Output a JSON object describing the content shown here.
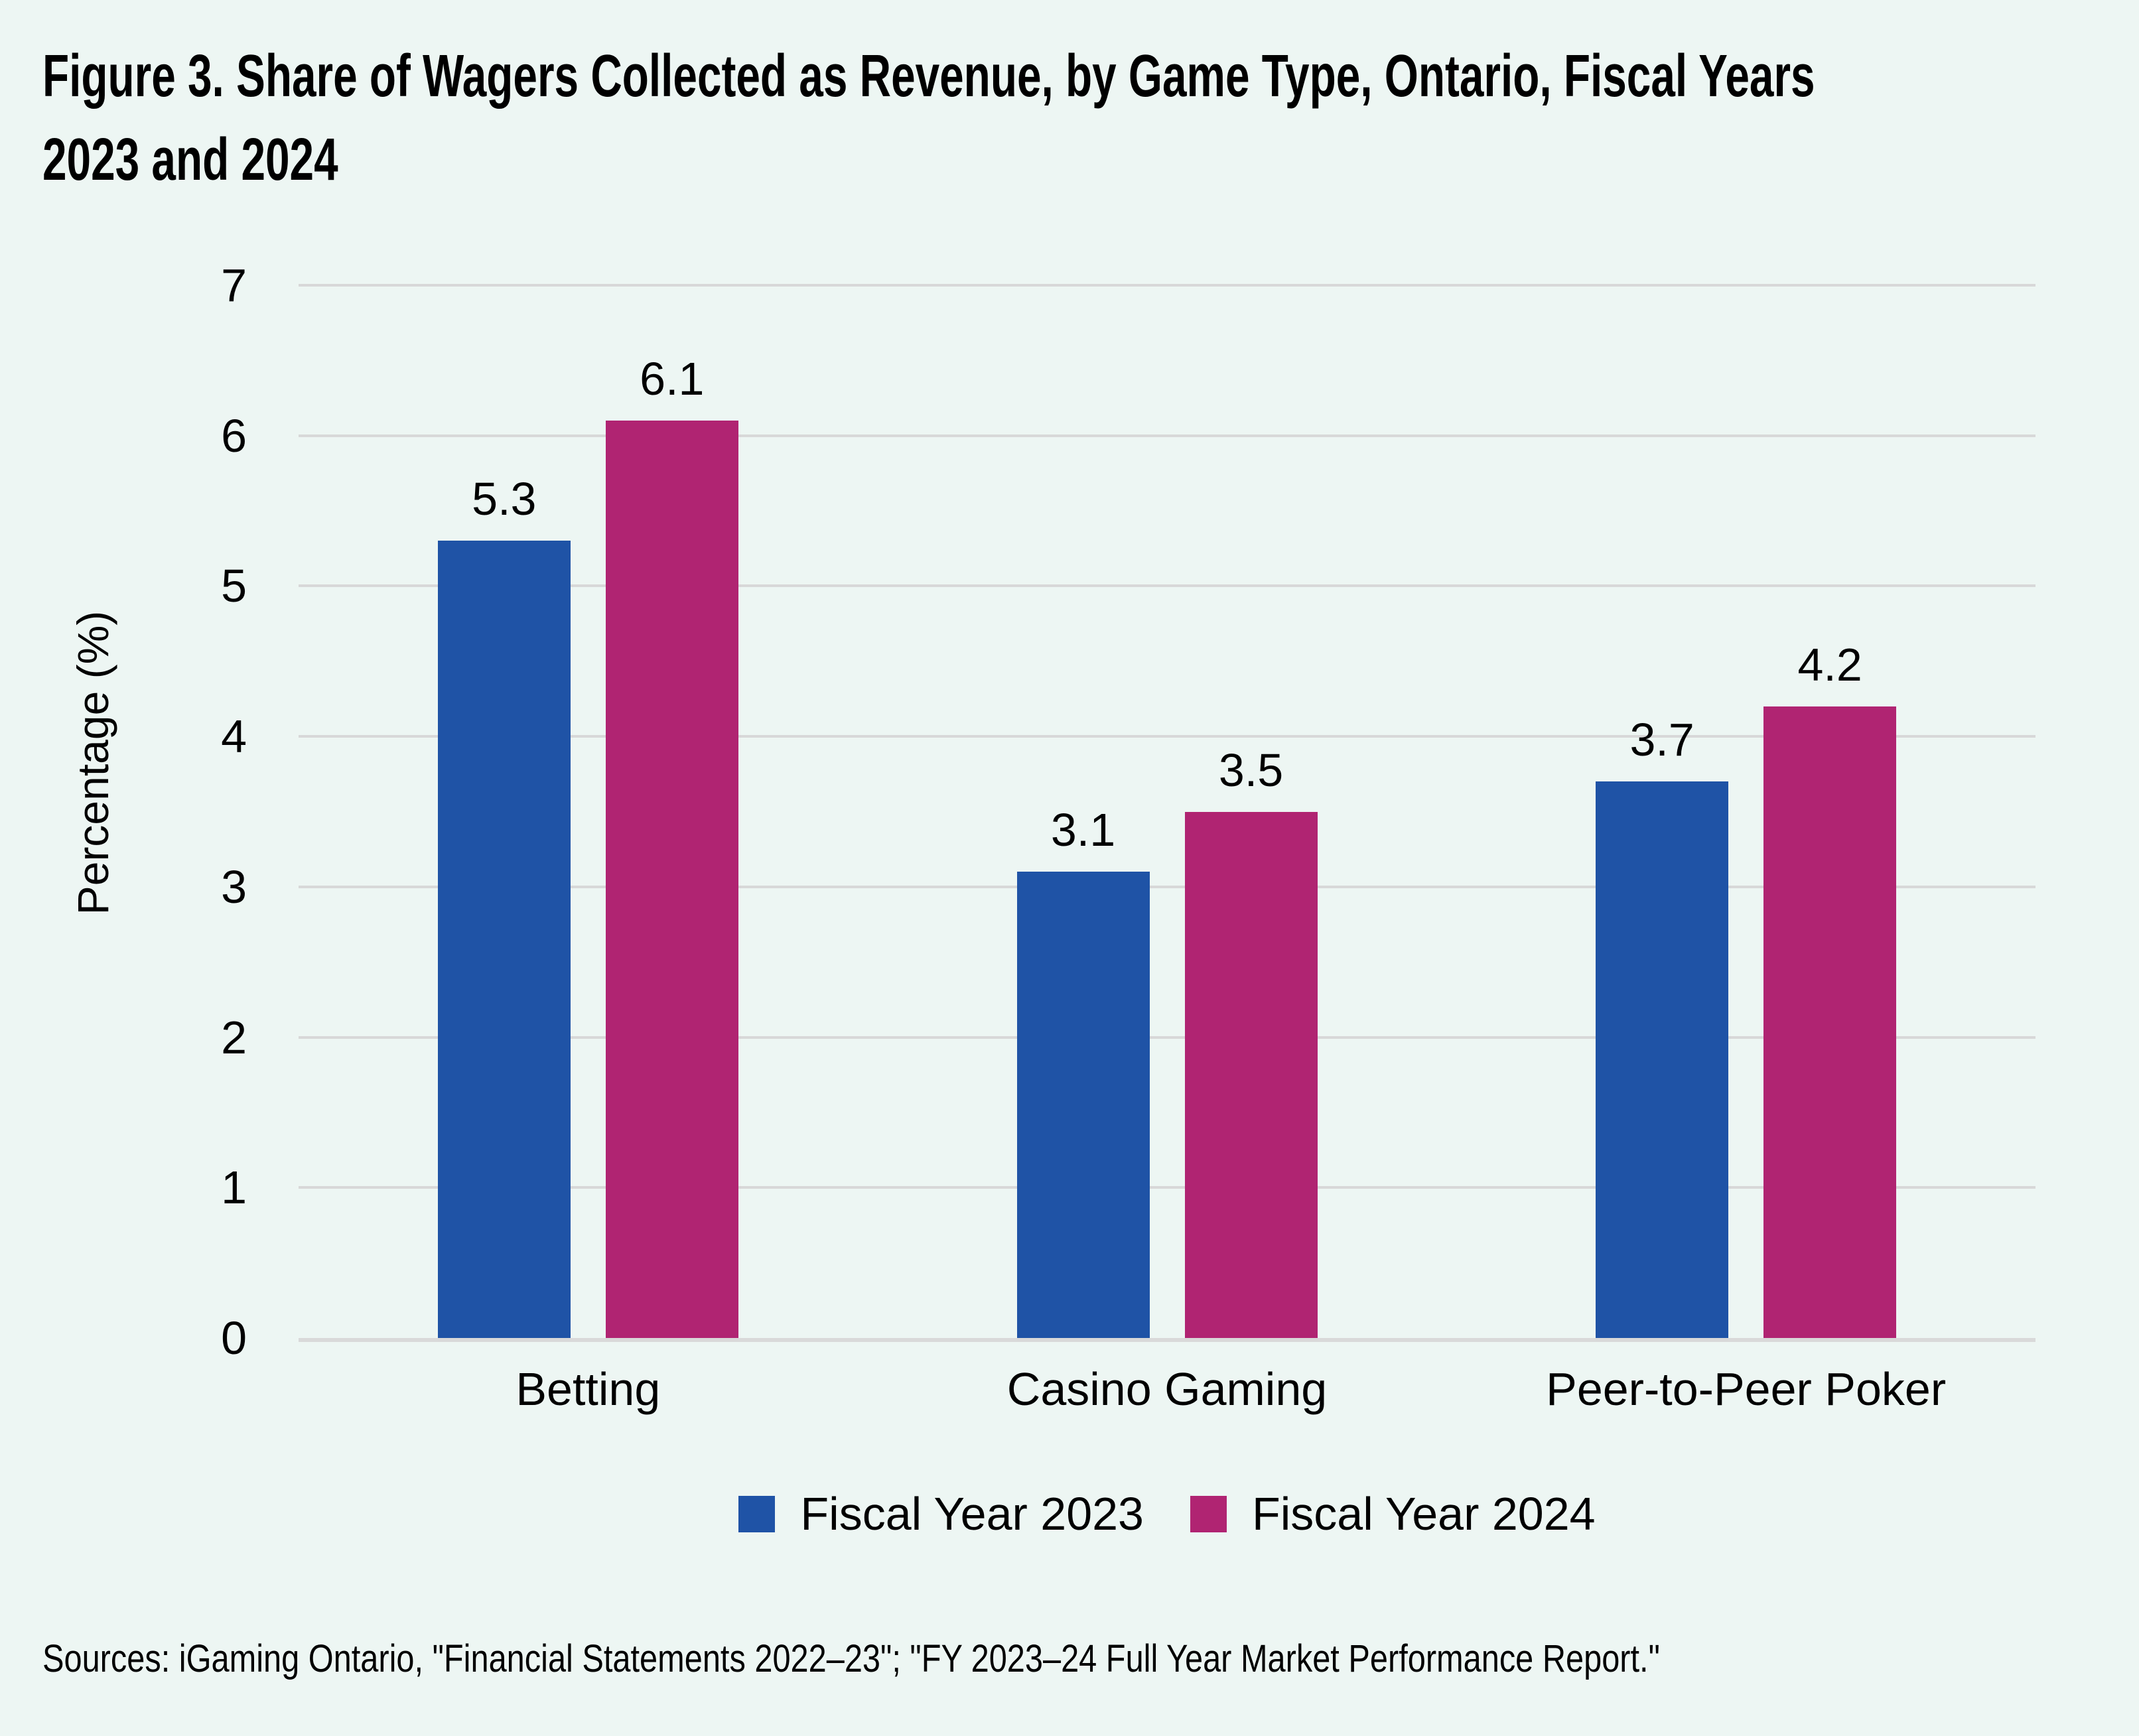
{
  "figure": {
    "title": "Figure 3. Share of Wagers Collected as Revenue, by Game Type, Ontario, Fiscal Years 2023 and 2024",
    "title_lines": [
      "Figure 3. Share of Wagers Collected as Revenue, by Game Type, Ontario, Fiscal Years",
      "2023 and 2024"
    ],
    "sources": "Sources: iGaming Ontario, \"Financial Statements 2022–23\"; \"FY 2023–24 Full Year Market Performance Report.\""
  },
  "chart_data": {
    "type": "bar",
    "title": "Figure 3. Share of Wagers Collected as Revenue, by Game Type, Ontario, Fiscal Years 2023 and 2024",
    "categories": [
      "Betting",
      "Casino Gaming",
      "Peer-to-Peer Poker"
    ],
    "series": [
      {
        "name": "Fiscal Year 2023",
        "color": "#1F53A6",
        "values": [
          5.3,
          3.1,
          3.7
        ]
      },
      {
        "name": "Fiscal Year 2024",
        "color": "#B02472",
        "values": [
          6.1,
          3.5,
          4.2
        ]
      }
    ],
    "xlabel": "",
    "ylabel": "Percentage (%)",
    "ylim": [
      0,
      7
    ],
    "yticks": [
      0,
      1,
      2,
      3,
      4,
      5,
      6,
      7
    ],
    "grid": true,
    "legend_position": "bottom",
    "value_labels": true
  },
  "colors": {
    "background": "#EDF6F3",
    "gridline": "#D8D8D8",
    "axis_line": "#D9D9D9",
    "text": "#000000"
  }
}
